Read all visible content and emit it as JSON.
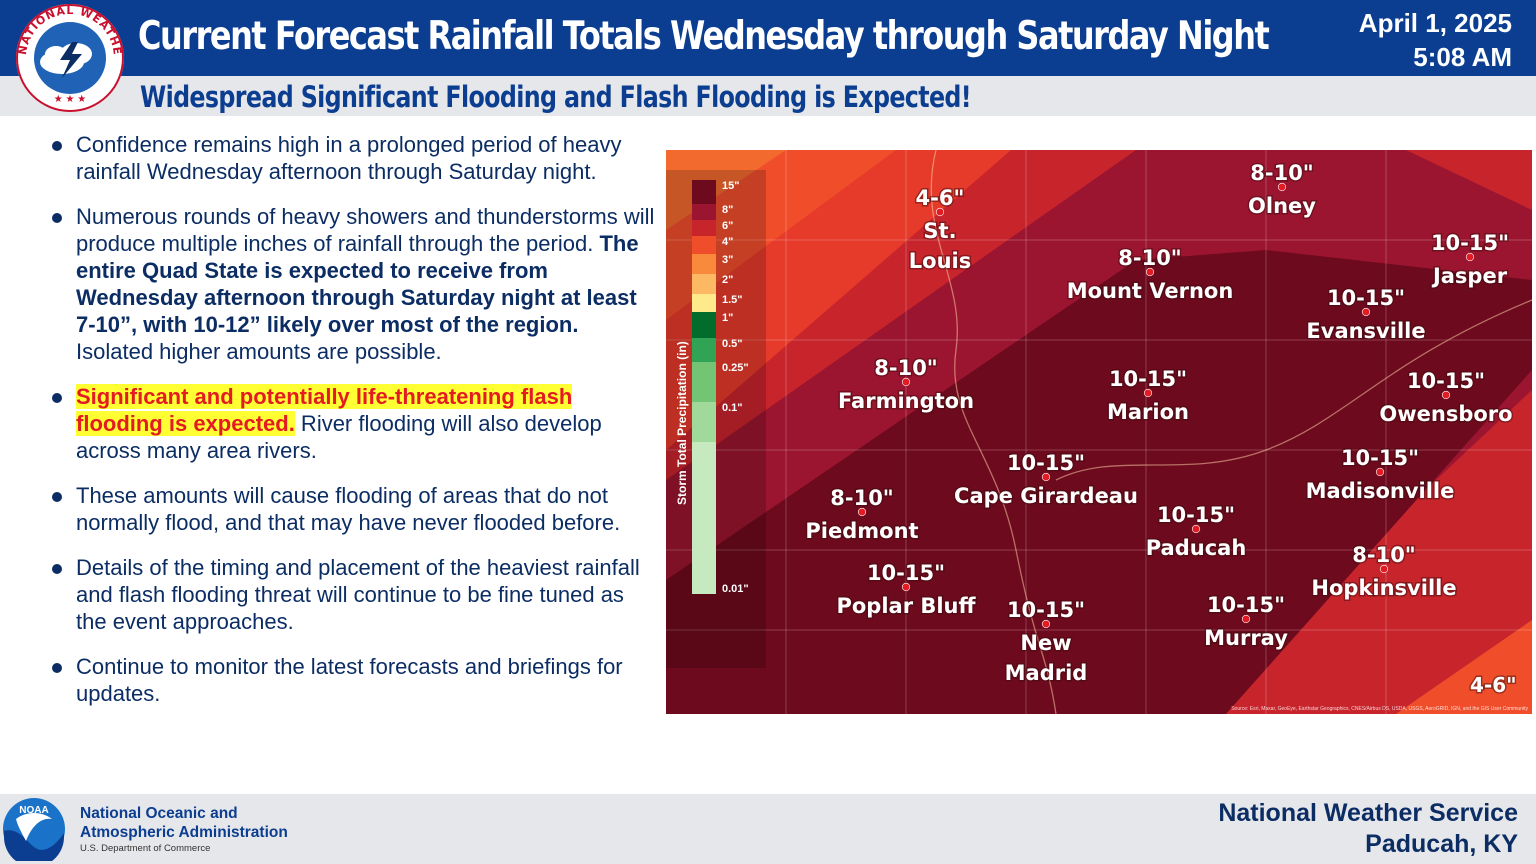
{
  "header": {
    "title": "Current Forecast Rainfall Totals Wednesday through Saturday Night",
    "subtitle": "Widespread Significant Flooding and Flash Flooding is Expected!",
    "date": "April 1, 2025",
    "time": "5:08 AM",
    "logo_text": "NATIONAL WEATHER SERVICE"
  },
  "bullets": [
    {
      "text": "Confidence remains high in a prolonged period of heavy rainfall Wednesday afternoon through Saturday night."
    },
    {
      "text": "Numerous rounds of heavy showers and thunderstorms will produce multiple inches of rainfall through the period. ",
      "bold": "The entire Quad State is expected to receive from Wednesday afternoon through Saturday night at least 7-10”, with 10-12” likely over most of the region.",
      "tail": "  Isolated higher amounts are possible."
    },
    {
      "highlight": "Significant and potentially life-threatening flash flooding is expected.",
      "text": " River flooding will also develop across many area rivers."
    },
    {
      "text": "These amounts will cause flooding of areas that do not normally flood, and that may have never flooded before."
    },
    {
      "text": "Details of the timing and placement of the heaviest rainfall and flash flooding threat will continue to be fine tuned as the event approaches."
    },
    {
      "text": "Continue to monitor the latest forecasts and briefings for updates."
    }
  ],
  "map": {
    "legend_title": "Storm Total Precipitation (in)",
    "legend_ticks": [
      "15\"",
      "8\"",
      "6\"",
      "4\"",
      "3\"",
      "2\"",
      "1.5\"",
      "1\"",
      "0.5\"",
      "0.25\"",
      "0.1\"",
      "0.01\""
    ],
    "legend_colors": [
      "#6e0a1e",
      "#9c1530",
      "#c8242c",
      "#f04e2b",
      "#f98a3c",
      "#fdb863",
      "#fee98b",
      "#006d2c",
      "#31a354",
      "#74c476",
      "#a1d99b",
      "#c7e9c0"
    ],
    "attribution": "Source: Esri, Maxar, GeoEye, Earthstar Geographics, CNES/Airbus DS, USDA, USGS, AeroGRID, IGN, and the GIS User Community",
    "cities": [
      {
        "amount": "4-6\"",
        "name": "St.\nLouis"
      },
      {
        "amount": "8-10\"",
        "name": "Olney"
      },
      {
        "amount": "8-10\"",
        "name": "Mount Vernon"
      },
      {
        "amount": "10-15\"",
        "name": "Jasper"
      },
      {
        "amount": "10-15\"",
        "name": "Evansville"
      },
      {
        "amount": "8-10\"",
        "name": "Farmington"
      },
      {
        "amount": "10-15\"",
        "name": "Marion"
      },
      {
        "amount": "10-15\"",
        "name": "Owensboro"
      },
      {
        "amount": "10-15\"",
        "name": "Cape Girardeau"
      },
      {
        "amount": "10-15\"",
        "name": "Madisonville"
      },
      {
        "amount": "8-10\"",
        "name": "Piedmont"
      },
      {
        "amount": "10-15\"",
        "name": "Paducah"
      },
      {
        "amount": "10-15\"",
        "name": "Poplar Bluff"
      },
      {
        "amount": "8-10\"",
        "name": "Hopkinsville"
      },
      {
        "amount": "10-15\"",
        "name": "New\nMadrid"
      },
      {
        "amount": "10-15\"",
        "name": "Murray"
      }
    ],
    "corner_label": "4-6\""
  },
  "footer": {
    "noaa_line1": "National Oceanic and",
    "noaa_line2": "Atmospheric Administration",
    "noaa_dept": "U.S. Department of Commerce",
    "noaa_logo_text": "NOAA",
    "office_line1": "National Weather Service",
    "office_line2": "Paducah, KY"
  }
}
